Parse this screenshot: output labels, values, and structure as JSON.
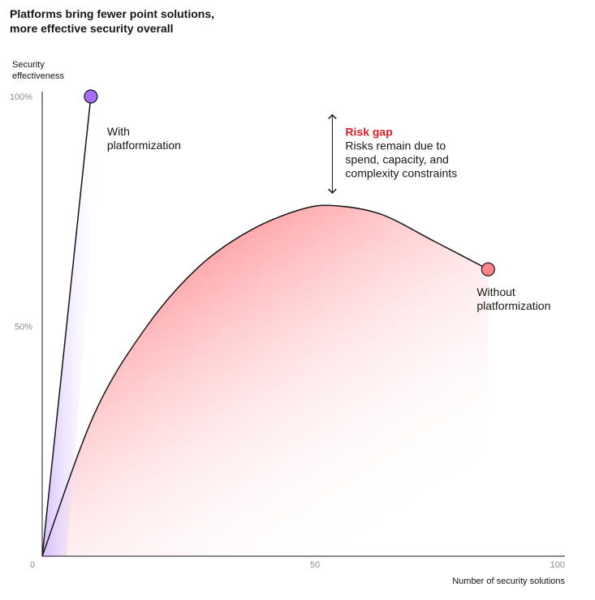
{
  "title_lines": [
    "Platforms bring fewer point solutions,",
    "more effective security overall"
  ],
  "chart_data": {
    "type": "line",
    "title": "Platforms bring fewer point solutions, more effective security overall",
    "xlabel": "Number of security solutions",
    "ylabel_lines": [
      "Security",
      "effectiveness"
    ],
    "xlim": [
      0,
      100
    ],
    "ylim": [
      0,
      100
    ],
    "x_ticks": [
      {
        "value": 0,
        "label": "0"
      },
      {
        "value": 50,
        "label": "50"
      },
      {
        "value": 100,
        "label": "100"
      }
    ],
    "y_ticks": [
      {
        "value": 50,
        "label": "50%"
      },
      {
        "value": 100,
        "label": "100%"
      }
    ],
    "grid": false,
    "series": [
      {
        "name": "With platformization",
        "label_lines": [
          "With",
          "platformization"
        ],
        "color": "#6929c4",
        "marker_color": "#a56eff",
        "x": [
          0,
          9.3
        ],
        "y": [
          0,
          100
        ]
      },
      {
        "name": "Without platformization",
        "label_lines": [
          "Without",
          "platformization"
        ],
        "color": "#161616",
        "marker_color": "#ff8389",
        "x": [
          0,
          10,
          20,
          30,
          40,
          50,
          56.5,
          65,
          75,
          85.3
        ],
        "y": [
          0,
          31,
          50,
          63,
          71,
          75.6,
          76.2,
          74.3,
          68.5,
          62.4
        ]
      }
    ],
    "annotation": {
      "title": "Risk gap",
      "lines": [
        "Risks remain due to",
        "spend, capacity, and",
        "complexity constraints"
      ],
      "x": 55.5,
      "y_from": 76.2,
      "y_to": 96
    }
  }
}
